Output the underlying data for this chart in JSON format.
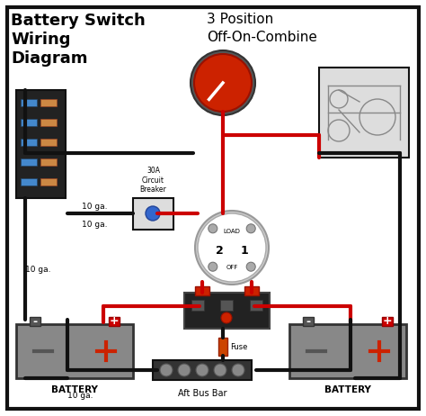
{
  "title": "Battery Switch\nWiring\nDiagram",
  "subtitle_line1": "3 Position",
  "subtitle_line2": "Off-On-Combine",
  "bg_color": "#ffffff",
  "wire_black": "#111111",
  "wire_red": "#cc0000",
  "label_10ga_1": "10 ga.",
  "label_10ga_2": "10 ga.",
  "label_10ga_3": "10 ga.",
  "label_10ga_4": "10 ga.",
  "label_30a": "30A\nCircuit\nBreaker",
  "label_fuse": "Fuse",
  "label_aft": "Aft Bus Bar",
  "label_battery": "BATTERY",
  "battery_box_color": "#888888",
  "battery_plus_color": "#cc0000",
  "battery_minus_color": "#555555",
  "switch_red_color": "#cc2200",
  "border_color": "#111111"
}
